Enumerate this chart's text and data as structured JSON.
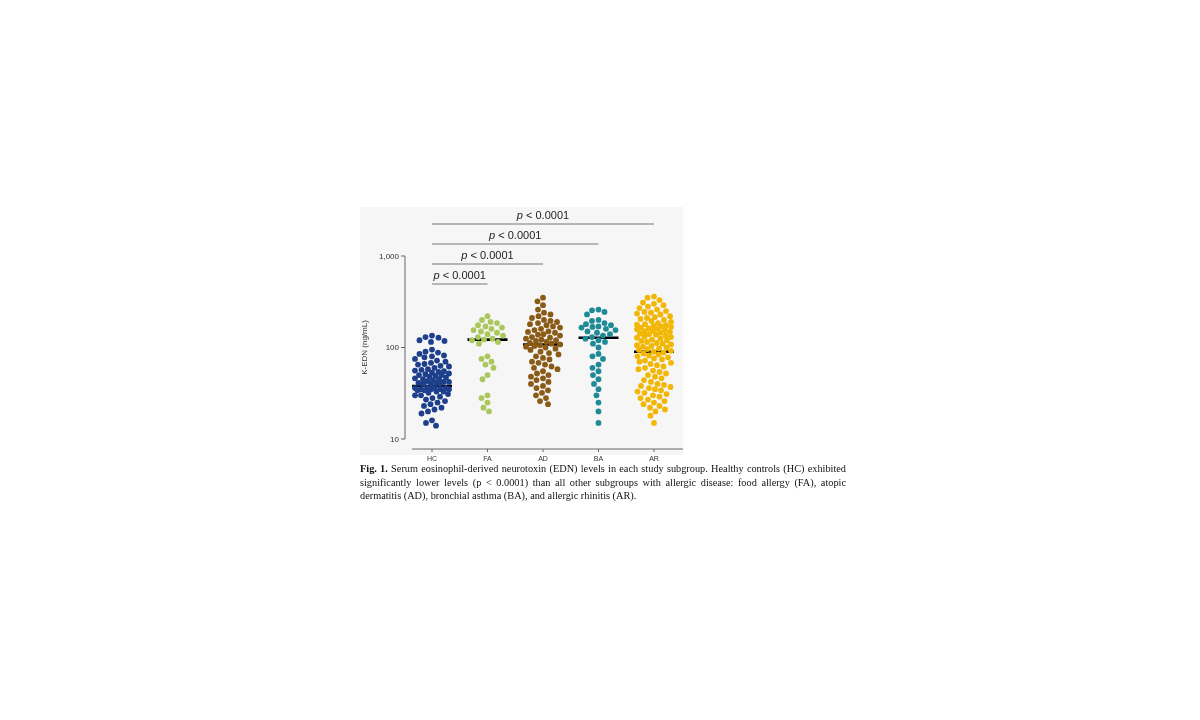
{
  "chart_data": {
    "type": "scatter",
    "categories": [
      "HC",
      "FA",
      "AD",
      "BA",
      "AR"
    ],
    "ylabel": "K-EDN (ng/mL)",
    "log": true,
    "ylim": [
      10,
      1000
    ],
    "yticks": [
      10,
      100,
      {
        "value": 1000,
        "label": "1,000"
      }
    ],
    "marker": "circle",
    "series": [
      {
        "color": "#1d3f8c",
        "x": [
          "HC",
          "HC",
          "HC",
          "HC",
          "HC",
          "HC",
          "HC",
          "HC",
          "HC",
          "HC",
          "HC",
          "HC",
          "HC",
          "HC",
          "HC",
          "HC",
          "HC",
          "HC",
          "HC",
          "HC",
          "HC",
          "HC",
          "HC",
          "HC",
          "HC",
          "HC",
          "HC",
          "HC",
          "HC",
          "HC",
          "HC",
          "HC",
          "HC",
          "HC",
          "HC",
          "HC",
          "HC",
          "HC",
          "HC",
          "HC",
          "HC",
          "HC",
          "HC",
          "HC",
          "HC",
          "HC",
          "HC",
          "HC",
          "HC",
          "HC",
          "HC",
          "HC",
          "HC",
          "HC",
          "HC",
          "HC",
          "HC",
          "HC",
          "HC",
          "HC",
          "HC",
          "HC",
          "HC",
          "HC",
          "HC",
          "HC",
          "HC",
          "HC",
          "HC",
          "HC",
          "HC",
          "HC",
          "HC",
          "HC",
          "HC",
          "HC",
          "HC"
        ],
        "values": [
          135,
          130,
          128,
          120,
          118,
          115,
          95,
          90,
          88,
          85,
          82,
          80,
          78,
          75,
          72,
          70,
          68,
          66,
          65,
          63,
          62,
          60,
          58,
          57,
          56,
          55,
          54,
          53,
          52,
          51,
          50,
          50,
          49,
          48,
          47,
          46,
          45,
          45,
          44,
          43,
          42,
          42,
          41,
          40,
          40,
          41,
          40,
          36,
          36,
          35,
          35,
          36,
          36,
          35,
          35,
          34,
          34,
          33,
          33,
          32,
          31,
          30,
          30,
          29,
          28,
          27,
          26,
          25,
          24,
          23,
          22,
          21,
          20,
          19,
          16,
          15,
          14
        ]
      },
      {
        "color": "#a9c75b",
        "x": [
          "FA",
          "FA",
          "FA",
          "FA",
          "FA",
          "FA",
          "FA",
          "FA",
          "FA",
          "FA",
          "FA",
          "FA",
          "FA",
          "FA",
          "FA",
          "FA",
          "FA",
          "FA",
          "FA",
          "FA",
          "FA",
          "FA",
          "FA",
          "FA",
          "FA",
          "FA",
          "FA",
          "FA",
          "FA",
          "FA",
          "FA"
        ],
        "values": [
          220,
          200,
          190,
          185,
          175,
          170,
          165,
          160,
          155,
          150,
          145,
          140,
          135,
          130,
          125,
          122,
          120,
          115,
          110,
          80,
          75,
          70,
          65,
          60,
          50,
          45,
          30,
          28,
          25,
          22,
          20
        ]
      },
      {
        "color": "#8a5a17",
        "x": [
          "AD",
          "AD",
          "AD",
          "AD",
          "AD",
          "AD",
          "AD",
          "AD",
          "AD",
          "AD",
          "AD",
          "AD",
          "AD",
          "AD",
          "AD",
          "AD",
          "AD",
          "AD",
          "AD",
          "AD",
          "AD",
          "AD",
          "AD",
          "AD",
          "AD",
          "AD",
          "AD",
          "AD",
          "AD",
          "AD",
          "AD",
          "AD",
          "AD",
          "AD",
          "AD",
          "AD",
          "AD",
          "AD",
          "AD",
          "AD",
          "AD",
          "AD",
          "AD",
          "AD",
          "AD",
          "AD",
          "AD",
          "AD",
          "AD",
          "AD",
          "AD",
          "AD",
          "AD",
          "AD",
          "AD",
          "AD",
          "AD",
          "AD",
          "AD",
          "AD",
          "AD",
          "AD",
          "AD",
          "AD",
          "AD",
          "AD",
          "AD",
          "AD"
        ],
        "values": [
          350,
          320,
          290,
          260,
          240,
          230,
          220,
          210,
          200,
          195,
          190,
          185,
          180,
          175,
          170,
          165,
          160,
          155,
          150,
          148,
          145,
          140,
          138,
          135,
          130,
          128,
          125,
          122,
          120,
          118,
          115,
          112,
          110,
          108,
          106,
          104,
          102,
          100,
          97,
          94,
          90,
          87,
          84,
          80,
          77,
          74,
          70,
          68,
          65,
          62,
          60,
          58,
          55,
          52,
          50,
          48,
          46,
          44,
          42,
          40,
          38,
          36,
          34,
          32,
          30,
          28,
          26,
          24
        ]
      },
      {
        "color": "#1f8a96",
        "x": [
          "BA",
          "BA",
          "BA",
          "BA",
          "BA",
          "BA",
          "BA",
          "BA",
          "BA",
          "BA",
          "BA",
          "BA",
          "BA",
          "BA",
          "BA",
          "BA",
          "BA",
          "BA",
          "BA",
          "BA",
          "BA",
          "BA",
          "BA",
          "BA",
          "BA",
          "BA",
          "BA",
          "BA",
          "BA",
          "BA",
          "BA",
          "BA",
          "BA",
          "BA",
          "BA",
          "BA",
          "BA",
          "BA"
        ],
        "values": [
          260,
          255,
          245,
          230,
          200,
          195,
          185,
          180,
          175,
          170,
          168,
          165,
          160,
          155,
          150,
          145,
          140,
          135,
          130,
          125,
          120,
          115,
          110,
          100,
          85,
          80,
          75,
          65,
          60,
          55,
          50,
          45,
          40,
          35,
          30,
          25,
          20,
          15
        ]
      },
      {
        "color": "#f2b705",
        "x": [
          "AR",
          "AR",
          "AR",
          "AR",
          "AR",
          "AR",
          "AR",
          "AR",
          "AR",
          "AR",
          "AR",
          "AR",
          "AR",
          "AR",
          "AR",
          "AR",
          "AR",
          "AR",
          "AR",
          "AR",
          "AR",
          "AR",
          "AR",
          "AR",
          "AR",
          "AR",
          "AR",
          "AR",
          "AR",
          "AR",
          "AR",
          "AR",
          "AR",
          "AR",
          "AR",
          "AR",
          "AR",
          "AR",
          "AR",
          "AR",
          "AR",
          "AR",
          "AR",
          "AR",
          "AR",
          "AR",
          "AR",
          "AR",
          "AR",
          "AR",
          "AR",
          "AR",
          "AR",
          "AR",
          "AR",
          "AR",
          "AR",
          "AR",
          "AR",
          "AR",
          "AR",
          "AR",
          "AR",
          "AR",
          "AR",
          "AR",
          "AR",
          "AR",
          "AR",
          "AR",
          "AR",
          "AR",
          "AR",
          "AR",
          "AR",
          "AR",
          "AR",
          "AR",
          "AR",
          "AR",
          "AR",
          "AR",
          "AR",
          "AR",
          "AR",
          "AR",
          "AR",
          "AR",
          "AR",
          "AR",
          "AR",
          "AR",
          "AR",
          "AR",
          "AR",
          "AR",
          "AR",
          "AR",
          "AR",
          "AR",
          "AR",
          "AR",
          "AR",
          "AR",
          "AR",
          "AR",
          "AR",
          "AR"
        ],
        "values": [
          360,
          350,
          330,
          310,
          300,
          290,
          280,
          270,
          260,
          250,
          245,
          240,
          235,
          230,
          220,
          215,
          210,
          205,
          200,
          195,
          190,
          185,
          180,
          178,
          175,
          172,
          170,
          168,
          165,
          162,
          160,
          158,
          155,
          152,
          150,
          148,
          145,
          142,
          140,
          138,
          135,
          132,
          130,
          128,
          125,
          122,
          120,
          118,
          115,
          112,
          110,
          108,
          106,
          104,
          102,
          100,
          98,
          96,
          94,
          92,
          90,
          88,
          86,
          84,
          82,
          80,
          78,
          76,
          74,
          72,
          70,
          68,
          66,
          64,
          62,
          60,
          58,
          56,
          54,
          52,
          50,
          48,
          46,
          44,
          42,
          40,
          39,
          38,
          37,
          36,
          35,
          34,
          33,
          32,
          31,
          30,
          29,
          28,
          27,
          26,
          25,
          24,
          23,
          22,
          21,
          20,
          18,
          15
        ]
      },
      {
        "type": "box",
        "color": "#000000",
        "boxes": [
          {
            "low": 38,
            "q1": 38,
            "median": 38,
            "q3": 38,
            "high": 38
          },
          {
            "low": 122,
            "q1": 122,
            "median": 122,
            "q3": 122,
            "high": 122
          },
          {
            "low": 108,
            "q1": 108,
            "median": 108,
            "q3": 108,
            "high": 108
          },
          {
            "low": 128,
            "q1": 128,
            "median": 128,
            "q3": 128,
            "high": 128
          },
          {
            "low": 90,
            "q1": 90,
            "median": 90,
            "q3": 90,
            "high": 90
          }
        ]
      }
    ],
    "annotations": [
      "p < 0.0001",
      "p < 0.0001",
      "p < 0.0001",
      "p < 0.0001",
      "Fig. 1. Serum eosinophil-derived neurotoxin (EDN) levels in each study subgroup. Healthy controls (HC) exhibited significantly lower levels (p < 0.0001) than all other subgroups with allergic disease: food allergy (FA), atopic dermatitis (AD), bronchial asthma (BA), and allergic rhinitis (AR)."
    ]
  }
}
